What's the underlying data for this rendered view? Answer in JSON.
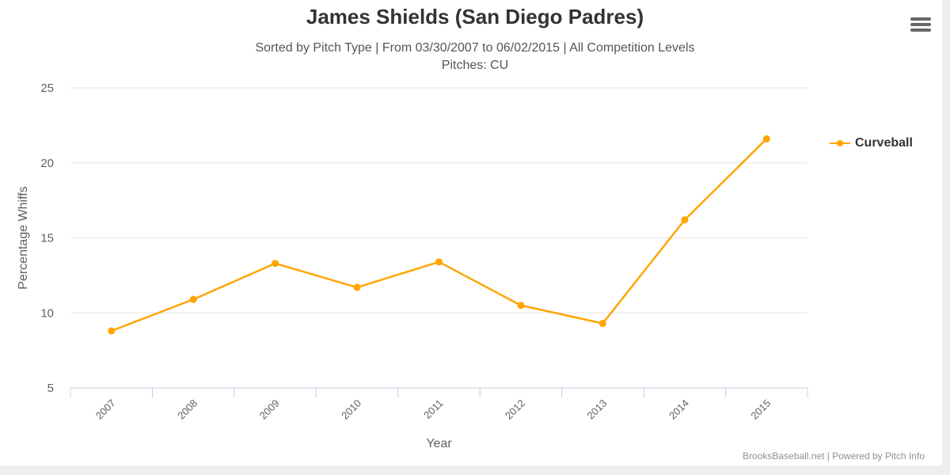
{
  "header": {
    "title": "James Shields (San Diego Padres)",
    "subtitle_line1": "Sorted by Pitch Type | From 03/30/2007 to 06/02/2015 | All Competition Levels",
    "subtitle_line2": "Pitches: CU"
  },
  "menu": {
    "icon": "hamburger-menu-icon"
  },
  "legend": {
    "items": [
      {
        "label": "Curveball",
        "color": "#FFA500"
      }
    ]
  },
  "credit": "BrooksBaseball.net | Powered by Pitch Info",
  "colors": {
    "series": "#FFA500",
    "grid": "#e6e6e6",
    "axis": "#c0d0e0",
    "text": "#606060"
  },
  "chart_data": {
    "type": "line",
    "title": "James Shields (San Diego Padres)",
    "subtitle": "Sorted by Pitch Type | From 03/30/2007 to 06/02/2015 | All Competition Levels / Pitches: CU",
    "xlabel": "Year",
    "ylabel": "Percentage Whiffs",
    "categories": [
      "2007",
      "2008",
      "2009",
      "2010",
      "2011",
      "2012",
      "2013",
      "2014",
      "2015"
    ],
    "series": [
      {
        "name": "Curveball",
        "values": [
          8.8,
          10.9,
          13.3,
          11.7,
          13.4,
          10.5,
          9.3,
          16.2,
          21.6
        ],
        "color": "#FFA500"
      }
    ],
    "ylim": [
      5,
      25
    ],
    "yticks": [
      5,
      10,
      15,
      20,
      25
    ],
    "grid": true,
    "legend_position": "right"
  }
}
